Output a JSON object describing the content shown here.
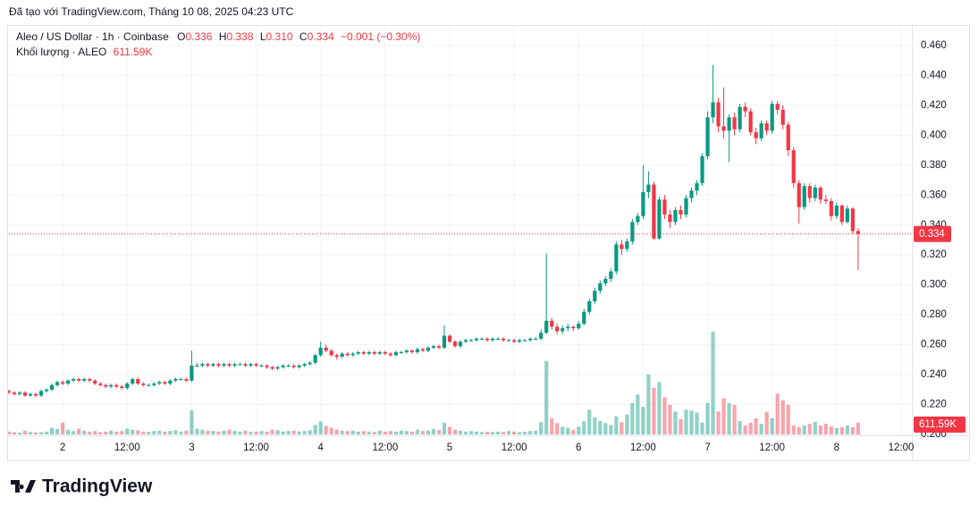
{
  "header": {
    "caption": "Đã tạo với TradingView.com, Tháng 10 08, 2025 04:23 UTC"
  },
  "legend": {
    "symbol": "Aleo / US Dollar · 1h · Coinbase",
    "ohlc": [
      {
        "key": "O",
        "text": "0.336"
      },
      {
        "key": "H",
        "text": "0.338"
      },
      {
        "key": "L",
        "text": "0.310"
      },
      {
        "key": "C",
        "text": "0.334"
      }
    ],
    "change": "−0.001 (−0.30%)",
    "volume_title": "Khối lượng · ALEO",
    "volume_text": "611.59K"
  },
  "footer": {
    "logo": "TradingView"
  },
  "chart_data": {
    "type": "candlestick",
    "up_color": "#089981",
    "down_color": "#f23645",
    "xlim": [
      0,
      168
    ],
    "ylim": [
      0.2,
      0.4725
    ],
    "grid": true,
    "xticks": [
      {
        "value": 10,
        "label": "2"
      },
      {
        "value": 22,
        "label": "12:00"
      },
      {
        "value": 34,
        "label": "3"
      },
      {
        "value": 46,
        "label": "12:00"
      },
      {
        "value": 58,
        "label": "4"
      },
      {
        "value": 70,
        "label": "12:00"
      },
      {
        "value": 82,
        "label": "5"
      },
      {
        "value": 94,
        "label": "12:00"
      },
      {
        "value": 106,
        "label": "6"
      },
      {
        "value": 118,
        "label": "12:00"
      },
      {
        "value": 130,
        "label": "7"
      },
      {
        "value": 142,
        "label": "12:00"
      },
      {
        "value": 154,
        "label": "8"
      },
      {
        "value": 166,
        "label": "12:00"
      }
    ],
    "yticks": [
      {
        "value": 0.2,
        "label": "0.200"
      },
      {
        "value": 0.22,
        "label": "0.220"
      },
      {
        "value": 0.24,
        "label": "0.240"
      },
      {
        "value": 0.26,
        "label": "0.260"
      },
      {
        "value": 0.28,
        "label": "0.280"
      },
      {
        "value": 0.3,
        "label": "0.300"
      },
      {
        "value": 0.32,
        "label": "0.320"
      },
      {
        "value": 0.34,
        "label": "0.340"
      },
      {
        "value": 0.36,
        "label": "0.360"
      },
      {
        "value": 0.38,
        "label": "0.380"
      },
      {
        "value": 0.4,
        "label": "0.400"
      },
      {
        "value": 0.42,
        "label": "0.420"
      },
      {
        "value": 0.44,
        "label": "0.440"
      },
      {
        "value": 0.46,
        "label": "0.460"
      }
    ],
    "price_tag": "0.334",
    "volume_tag": "611.59K",
    "x": [
      0,
      1,
      2,
      3,
      4,
      5,
      6,
      7,
      8,
      9,
      10,
      11,
      12,
      13,
      14,
      15,
      16,
      17,
      18,
      19,
      20,
      21,
      22,
      23,
      24,
      25,
      26,
      27,
      28,
      29,
      30,
      31,
      32,
      33,
      34,
      35,
      36,
      37,
      38,
      39,
      40,
      41,
      42,
      43,
      44,
      45,
      46,
      47,
      48,
      49,
      50,
      51,
      52,
      53,
      54,
      55,
      56,
      57,
      58,
      59,
      60,
      61,
      62,
      63,
      64,
      65,
      66,
      67,
      68,
      69,
      70,
      71,
      72,
      73,
      74,
      75,
      76,
      77,
      78,
      79,
      80,
      81,
      82,
      83,
      84,
      85,
      86,
      87,
      88,
      89,
      90,
      91,
      92,
      93,
      94,
      95,
      96,
      97,
      98,
      99,
      100,
      101,
      102,
      103,
      104,
      105,
      106,
      107,
      108,
      109,
      110,
      111,
      112,
      113,
      114,
      115,
      116,
      117,
      118,
      119,
      120,
      121,
      122,
      123,
      124,
      125,
      126,
      127,
      128,
      129,
      130,
      131,
      132,
      133,
      134,
      135,
      136,
      137,
      138,
      139,
      140,
      141,
      142,
      143,
      144,
      145,
      146,
      147,
      148,
      149,
      150,
      151,
      152,
      153,
      154,
      155,
      156,
      157,
      158
    ],
    "open": [
      0.229,
      0.228,
      0.227,
      0.228,
      0.226,
      0.227,
      0.226,
      0.229,
      0.23,
      0.233,
      0.235,
      0.234,
      0.236,
      0.237,
      0.236,
      0.237,
      0.236,
      0.234,
      0.233,
      0.232,
      0.233,
      0.232,
      0.231,
      0.234,
      0.237,
      0.234,
      0.233,
      0.233,
      0.234,
      0.235,
      0.234,
      0.236,
      0.237,
      0.237,
      0.236,
      0.246,
      0.246,
      0.247,
      0.246,
      0.247,
      0.246,
      0.247,
      0.246,
      0.247,
      0.247,
      0.246,
      0.247,
      0.246,
      0.246,
      0.245,
      0.244,
      0.245,
      0.246,
      0.246,
      0.245,
      0.246,
      0.247,
      0.248,
      0.253,
      0.258,
      0.256,
      0.253,
      0.252,
      0.254,
      0.253,
      0.254,
      0.255,
      0.254,
      0.255,
      0.254,
      0.255,
      0.254,
      0.253,
      0.255,
      0.255,
      0.256,
      0.255,
      0.257,
      0.256,
      0.258,
      0.259,
      0.258,
      0.266,
      0.262,
      0.259,
      0.262,
      0.263,
      0.263,
      0.264,
      0.264,
      0.263,
      0.264,
      0.264,
      0.263,
      0.263,
      0.262,
      0.263,
      0.263,
      0.264,
      0.264,
      0.268,
      0.276,
      0.272,
      0.269,
      0.271,
      0.272,
      0.271,
      0.274,
      0.282,
      0.289,
      0.296,
      0.301,
      0.304,
      0.309,
      0.327,
      0.324,
      0.329,
      0.342,
      0.346,
      0.362,
      0.367,
      0.331,
      0.357,
      0.347,
      0.342,
      0.35,
      0.347,
      0.358,
      0.363,
      0.368,
      0.386,
      0.412,
      0.422,
      0.406,
      0.403,
      0.412,
      0.404,
      0.419,
      0.416,
      0.402,
      0.398,
      0.408,
      0.403,
      0.421,
      0.417,
      0.407,
      0.39,
      0.368,
      0.352,
      0.366,
      0.358,
      0.365,
      0.357,
      0.356,
      0.346,
      0.353,
      0.342,
      0.351,
      0.336
    ],
    "high": [
      0.23,
      0.229,
      0.229,
      0.229,
      0.228,
      0.228,
      0.23,
      0.231,
      0.234,
      0.236,
      0.236,
      0.237,
      0.238,
      0.238,
      0.238,
      0.238,
      0.237,
      0.235,
      0.234,
      0.234,
      0.234,
      0.233,
      0.235,
      0.238,
      0.238,
      0.235,
      0.234,
      0.235,
      0.236,
      0.236,
      0.237,
      0.238,
      0.238,
      0.238,
      0.256,
      0.248,
      0.248,
      0.248,
      0.248,
      0.248,
      0.248,
      0.248,
      0.248,
      0.248,
      0.248,
      0.248,
      0.248,
      0.247,
      0.247,
      0.246,
      0.246,
      0.247,
      0.247,
      0.247,
      0.247,
      0.248,
      0.249,
      0.254,
      0.262,
      0.26,
      0.257,
      0.254,
      0.255,
      0.255,
      0.255,
      0.256,
      0.256,
      0.256,
      0.256,
      0.256,
      0.256,
      0.255,
      0.256,
      0.256,
      0.257,
      0.257,
      0.258,
      0.258,
      0.259,
      0.26,
      0.26,
      0.273,
      0.267,
      0.263,
      0.263,
      0.264,
      0.264,
      0.265,
      0.265,
      0.265,
      0.265,
      0.265,
      0.265,
      0.264,
      0.264,
      0.264,
      0.264,
      0.265,
      0.265,
      0.27,
      0.321,
      0.278,
      0.274,
      0.273,
      0.274,
      0.273,
      0.276,
      0.284,
      0.291,
      0.298,
      0.303,
      0.306,
      0.311,
      0.329,
      0.33,
      0.331,
      0.344,
      0.348,
      0.38,
      0.376,
      0.369,
      0.359,
      0.36,
      0.35,
      0.352,
      0.353,
      0.36,
      0.365,
      0.37,
      0.388,
      0.416,
      0.447,
      0.425,
      0.432,
      0.414,
      0.415,
      0.421,
      0.422,
      0.418,
      0.405,
      0.41,
      0.41,
      0.423,
      0.423,
      0.42,
      0.409,
      0.392,
      0.37,
      0.368,
      0.368,
      0.367,
      0.366,
      0.36,
      0.358,
      0.355,
      0.354,
      0.353,
      0.352,
      0.338
    ],
    "low": [
      0.227,
      0.226,
      0.226,
      0.225,
      0.225,
      0.225,
      0.225,
      0.228,
      0.229,
      0.232,
      0.233,
      0.233,
      0.235,
      0.235,
      0.235,
      0.235,
      0.233,
      0.232,
      0.231,
      0.231,
      0.231,
      0.23,
      0.23,
      0.233,
      0.233,
      0.232,
      0.232,
      0.232,
      0.233,
      0.233,
      0.233,
      0.235,
      0.236,
      0.235,
      0.235,
      0.245,
      0.245,
      0.245,
      0.245,
      0.245,
      0.245,
      0.245,
      0.245,
      0.246,
      0.245,
      0.245,
      0.245,
      0.245,
      0.244,
      0.243,
      0.243,
      0.244,
      0.245,
      0.244,
      0.244,
      0.245,
      0.246,
      0.247,
      0.252,
      0.255,
      0.252,
      0.25,
      0.251,
      0.252,
      0.252,
      0.253,
      0.253,
      0.253,
      0.253,
      0.253,
      0.253,
      0.252,
      0.252,
      0.254,
      0.254,
      0.254,
      0.254,
      0.255,
      0.255,
      0.257,
      0.257,
      0.257,
      0.261,
      0.258,
      0.258,
      0.261,
      0.262,
      0.262,
      0.263,
      0.262,
      0.262,
      0.263,
      0.262,
      0.262,
      0.261,
      0.261,
      0.262,
      0.262,
      0.263,
      0.263,
      0.267,
      0.27,
      0.267,
      0.267,
      0.269,
      0.269,
      0.27,
      0.273,
      0.28,
      0.287,
      0.294,
      0.299,
      0.302,
      0.307,
      0.32,
      0.322,
      0.327,
      0.34,
      0.344,
      0.358,
      0.33,
      0.33,
      0.344,
      0.338,
      0.34,
      0.344,
      0.345,
      0.355,
      0.36,
      0.366,
      0.384,
      0.408,
      0.402,
      0.398,
      0.382,
      0.4,
      0.402,
      0.412,
      0.4,
      0.394,
      0.396,
      0.4,
      0.401,
      0.414,
      0.404,
      0.386,
      0.365,
      0.341,
      0.35,
      0.355,
      0.356,
      0.354,
      0.354,
      0.343,
      0.344,
      0.34,
      0.341,
      0.334,
      0.31
    ],
    "close": [
      0.228,
      0.227,
      0.228,
      0.226,
      0.227,
      0.226,
      0.229,
      0.23,
      0.233,
      0.235,
      0.234,
      0.236,
      0.237,
      0.236,
      0.237,
      0.236,
      0.234,
      0.233,
      0.232,
      0.233,
      0.232,
      0.231,
      0.234,
      0.237,
      0.234,
      0.233,
      0.233,
      0.234,
      0.235,
      0.234,
      0.236,
      0.237,
      0.237,
      0.236,
      0.246,
      0.246,
      0.247,
      0.246,
      0.247,
      0.246,
      0.247,
      0.246,
      0.247,
      0.247,
      0.246,
      0.247,
      0.246,
      0.246,
      0.245,
      0.244,
      0.245,
      0.246,
      0.246,
      0.245,
      0.246,
      0.247,
      0.248,
      0.253,
      0.258,
      0.256,
      0.253,
      0.252,
      0.254,
      0.253,
      0.254,
      0.255,
      0.254,
      0.255,
      0.254,
      0.255,
      0.254,
      0.253,
      0.255,
      0.255,
      0.256,
      0.255,
      0.257,
      0.256,
      0.258,
      0.259,
      0.258,
      0.266,
      0.262,
      0.259,
      0.262,
      0.263,
      0.263,
      0.264,
      0.264,
      0.263,
      0.264,
      0.264,
      0.263,
      0.263,
      0.262,
      0.263,
      0.263,
      0.264,
      0.264,
      0.268,
      0.276,
      0.272,
      0.269,
      0.271,
      0.272,
      0.271,
      0.274,
      0.282,
      0.289,
      0.296,
      0.301,
      0.304,
      0.309,
      0.327,
      0.324,
      0.329,
      0.342,
      0.346,
      0.362,
      0.367,
      0.331,
      0.357,
      0.347,
      0.342,
      0.35,
      0.347,
      0.358,
      0.363,
      0.368,
      0.386,
      0.412,
      0.422,
      0.406,
      0.403,
      0.412,
      0.404,
      0.419,
      0.416,
      0.402,
      0.398,
      0.408,
      0.403,
      0.421,
      0.417,
      0.407,
      0.39,
      0.368,
      0.352,
      0.366,
      0.358,
      0.365,
      0.357,
      0.356,
      0.346,
      0.353,
      0.342,
      0.351,
      0.336,
      0.334
    ],
    "volume": [
      150000,
      120000,
      100000,
      200000,
      130000,
      100000,
      120000,
      150000,
      350000,
      280000,
      620000,
      250000,
      180000,
      300000,
      200000,
      150000,
      180000,
      120000,
      150000,
      200000,
      150000,
      180000,
      300000,
      250000,
      220000,
      150000,
      130000,
      180000,
      200000,
      150000,
      180000,
      220000,
      150000,
      200000,
      1270000,
      300000,
      250000,
      200000,
      180000,
      150000,
      200000,
      250000,
      180000,
      150000,
      200000,
      130000,
      150000,
      180000,
      150000,
      250000,
      220000,
      150000,
      180000,
      200000,
      150000,
      180000,
      220000,
      500000,
      680000,
      450000,
      350000,
      250000,
      200000,
      180000,
      200000,
      150000,
      180000,
      150000,
      130000,
      200000,
      150000,
      180000,
      150000,
      200000,
      180000,
      150000,
      250000,
      180000,
      200000,
      280000,
      220000,
      620000,
      400000,
      250000,
      200000,
      150000,
      180000,
      150000,
      130000,
      150000,
      120000,
      150000,
      130000,
      180000,
      150000,
      120000,
      150000,
      180000,
      200000,
      650000,
      3850000,
      850000,
      600000,
      400000,
      350000,
      250000,
      400000,
      700000,
      1300000,
      900000,
      700000,
      600000,
      500000,
      950000,
      650000,
      1050000,
      1650000,
      2100000,
      1450000,
      3150000,
      2450000,
      2750000,
      1950000,
      1550000,
      1200000,
      800000,
      1300000,
      1250000,
      1150000,
      620000,
      1650000,
      5400000,
      1200000,
      1900000,
      1650000,
      1550000,
      700000,
      470000,
      620000,
      850000,
      560000,
      1180000,
      850000,
      2150000,
      1800000,
      1550000,
      470000,
      380000,
      470000,
      560000,
      660000,
      470000,
      560000,
      420000,
      330000,
      380000,
      470000,
      380000,
      611590
    ]
  }
}
